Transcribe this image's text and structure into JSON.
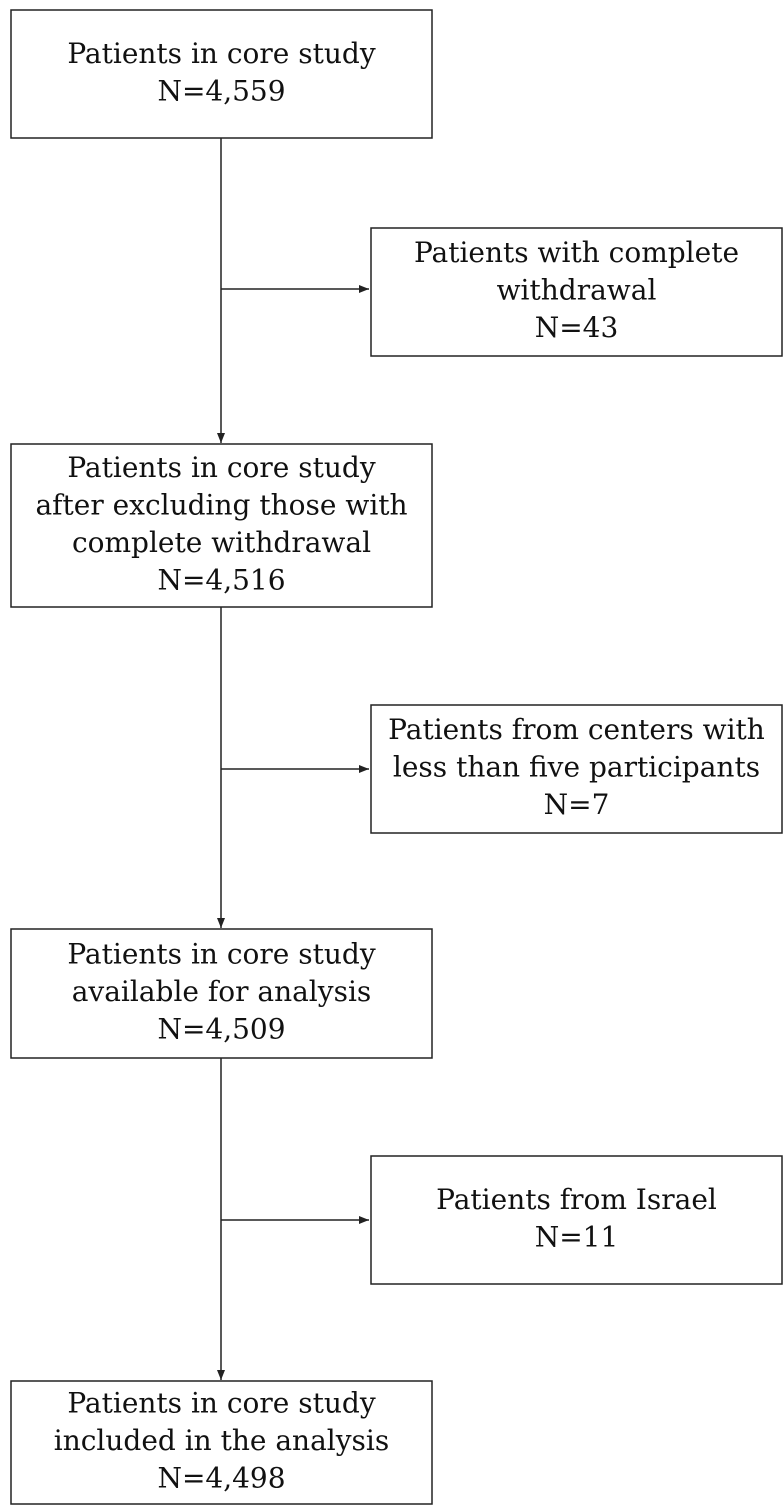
{
  "nodes": [
    {
      "lines": [
        "Patients in core study",
        "N=4,559"
      ]
    },
    {
      "lines": [
        "Patients with complete",
        "withdrawal",
        "N=43"
      ]
    },
    {
      "lines": [
        "Patients in core study",
        "after excluding those with",
        "complete withdrawal",
        "N=4,516"
      ]
    },
    {
      "lines": [
        "Patients from centers with",
        "less than five participants",
        "N=7"
      ]
    },
    {
      "lines": [
        "Patients in core study",
        "available for analysis",
        "N=4,509"
      ]
    },
    {
      "lines": [
        "Patients from Israel",
        "N=11"
      ]
    },
    {
      "lines": [
        "Patients in core study",
        "included in the analysis",
        "N=4,498"
      ]
    }
  ]
}
